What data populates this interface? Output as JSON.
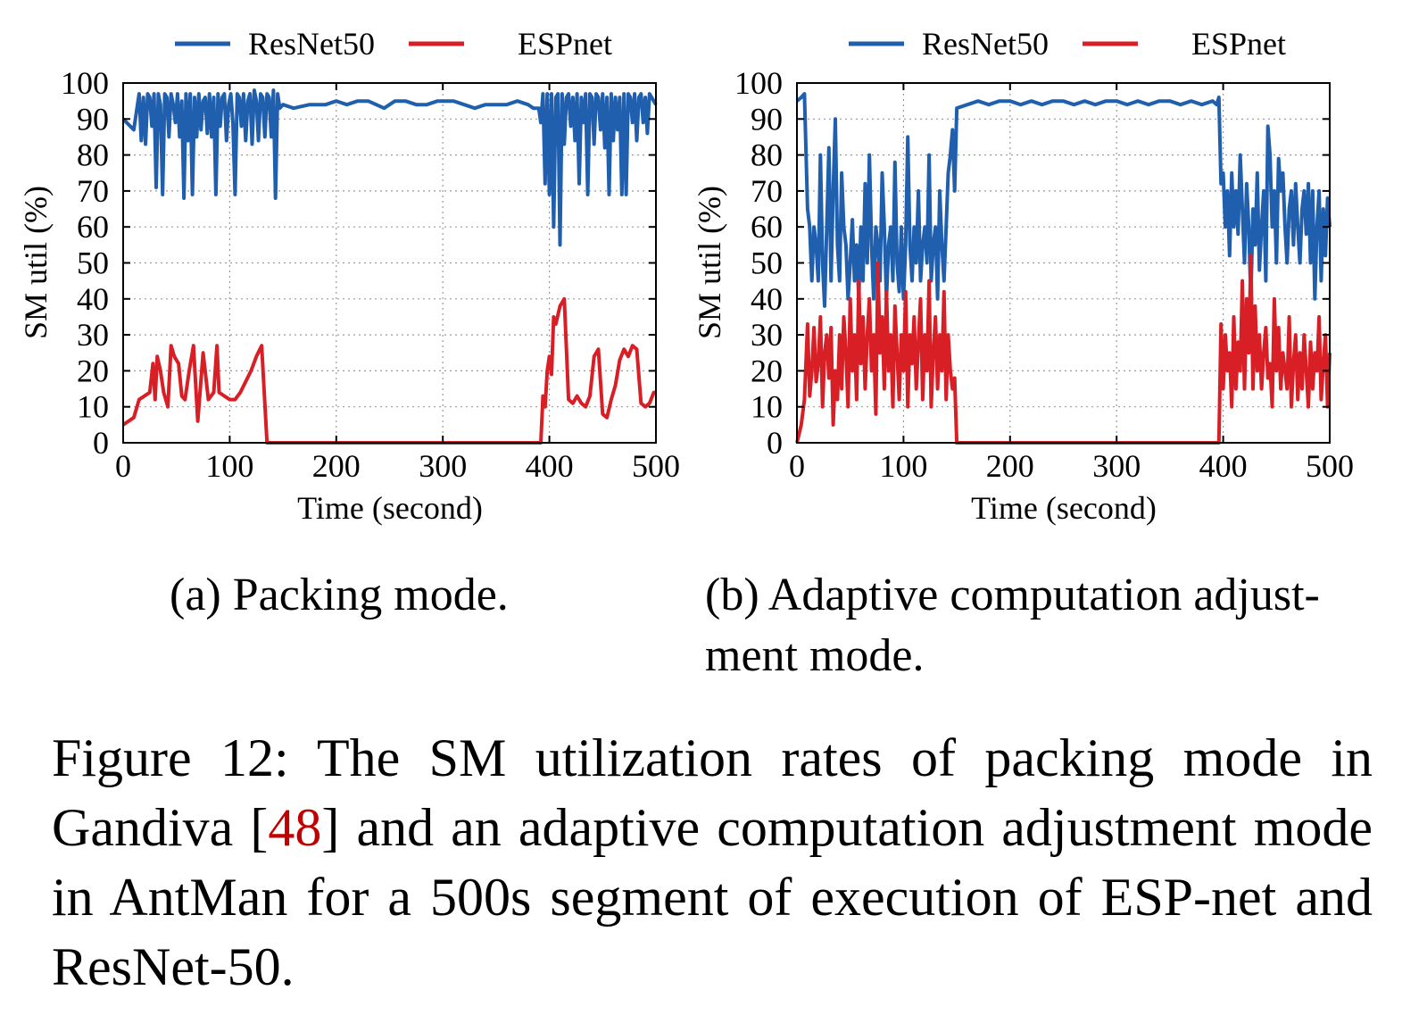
{
  "colors": {
    "resnet": "#1f5fad",
    "espnet": "#d81f26",
    "grid": "#9a9a9a"
  },
  "legend": {
    "series1": "ResNet50",
    "series2": "ESPnet"
  },
  "chart_data": [
    {
      "id": "a",
      "type": "line",
      "title": "",
      "xlabel": "Time (second)",
      "ylabel": "SM util (%)",
      "xlim": [
        0,
        500
      ],
      "ylim": [
        0,
        100
      ],
      "xticks": [
        0,
        100,
        200,
        300,
        400,
        500
      ],
      "yticks": [
        0,
        10,
        20,
        30,
        40,
        50,
        60,
        70,
        80,
        90,
        100
      ],
      "grid": true,
      "legend": "top",
      "series": [
        {
          "name": "ResNet50",
          "x": [
            0,
            10,
            15,
            17,
            19,
            21,
            23,
            25,
            27,
            29,
            31,
            33,
            35,
            37,
            39,
            41,
            43,
            45,
            47,
            49,
            51,
            53,
            55,
            57,
            59,
            61,
            63,
            65,
            67,
            69,
            71,
            73,
            75,
            77,
            79,
            81,
            83,
            85,
            87,
            89,
            91,
            93,
            95,
            97,
            99,
            101,
            103,
            105,
            107,
            109,
            111,
            113,
            115,
            117,
            119,
            121,
            123,
            125,
            127,
            129,
            131,
            133,
            135,
            137,
            139,
            141,
            143,
            145,
            147,
            150,
            160,
            175,
            190,
            200,
            210,
            220,
            230,
            245,
            255,
            265,
            275,
            285,
            295,
            310,
            320,
            330,
            340,
            350,
            360,
            370,
            380,
            385,
            390,
            392,
            394,
            396,
            398,
            400,
            402,
            404,
            406,
            408,
            410,
            412,
            414,
            416,
            418,
            420,
            422,
            424,
            426,
            428,
            430,
            432,
            434,
            436,
            438,
            440,
            442,
            444,
            446,
            448,
            450,
            452,
            454,
            456,
            458,
            460,
            462,
            464,
            466,
            468,
            470,
            472,
            474,
            476,
            478,
            480,
            482,
            484,
            486,
            488,
            490,
            492,
            494,
            496,
            498,
            500
          ],
          "y": [
            90,
            87,
            97,
            84,
            96,
            83,
            97,
            96,
            88,
            97,
            71,
            97,
            94,
            69,
            97,
            96,
            85,
            97,
            94,
            89,
            97,
            85,
            95,
            68,
            97,
            84,
            97,
            69,
            96,
            85,
            97,
            87,
            95,
            96,
            86,
            97,
            85,
            96,
            69,
            97,
            88,
            96,
            97,
            84,
            94,
            97,
            89,
            69,
            97,
            96,
            88,
            97,
            84,
            95,
            97,
            83,
            98,
            95,
            84,
            97,
            96,
            85,
            97,
            96,
            85,
            98,
            68,
            97,
            93,
            94,
            93,
            94,
            94,
            95,
            94,
            95,
            95,
            93,
            95,
            95,
            94,
            94,
            95,
            95,
            94,
            93,
            94,
            94,
            94,
            95,
            94,
            93,
            93,
            89,
            97,
            72,
            97,
            69,
            97,
            60,
            96,
            97,
            55,
            97,
            83,
            96,
            97,
            88,
            96,
            84,
            97,
            72,
            96,
            89,
            97,
            69,
            97,
            96,
            83,
            97,
            96,
            87,
            97,
            82,
            96,
            69,
            97,
            84,
            96,
            87,
            96,
            69,
            97,
            69,
            97,
            96,
            89,
            97,
            84,
            96,
            97,
            89,
            96,
            86,
            97,
            96,
            95,
            94
          ]
        },
        {
          "name": "ESPnet",
          "x": [
            0,
            10,
            15,
            20,
            25,
            28,
            30,
            32,
            35,
            38,
            42,
            45,
            48,
            52,
            55,
            58,
            62,
            66,
            70,
            75,
            80,
            85,
            88,
            90,
            95,
            100,
            105,
            110,
            115,
            120,
            125,
            130,
            135,
            140,
            145,
            148,
            150,
            200,
            250,
            300,
            350,
            392,
            394,
            396,
            398,
            400,
            402,
            404,
            406,
            410,
            414,
            418,
            422,
            426,
            430,
            434,
            438,
            442,
            446,
            450,
            454,
            458,
            462,
            466,
            470,
            474,
            478,
            482,
            486,
            490,
            494,
            498,
            500
          ],
          "y": [
            5,
            7,
            12,
            13,
            14,
            22,
            12,
            24,
            20,
            14,
            10,
            27,
            24,
            22,
            13,
            12,
            20,
            27,
            6,
            25,
            12,
            14,
            27,
            14,
            13,
            12,
            12,
            14,
            17,
            20,
            24,
            27,
            0,
            0,
            0,
            0,
            0,
            0,
            0,
            0,
            0,
            0,
            13,
            10,
            20,
            24,
            19,
            35,
            33,
            38,
            40,
            12,
            11,
            13,
            11,
            10,
            13,
            24,
            26,
            8,
            7,
            12,
            16,
            23,
            26,
            24,
            27,
            26,
            11,
            10,
            11,
            14,
            14
          ]
        }
      ]
    },
    {
      "id": "b",
      "type": "line",
      "title": "",
      "xlabel": "Time (second)",
      "ylabel": "SM util (%)",
      "xlim": [
        0,
        500
      ],
      "ylim": [
        0,
        100
      ],
      "xticks": [
        0,
        100,
        200,
        300,
        400,
        500
      ],
      "yticks": [
        0,
        10,
        20,
        30,
        40,
        50,
        60,
        70,
        80,
        90,
        100
      ],
      "grid": true,
      "legend": "top",
      "series": [
        {
          "name": "ResNet50",
          "x": [
            0,
            4,
            7,
            10,
            12,
            14,
            16,
            18,
            20,
            22,
            24,
            26,
            28,
            30,
            32,
            34,
            36,
            38,
            40,
            42,
            44,
            46,
            48,
            50,
            52,
            54,
            56,
            58,
            60,
            62,
            64,
            66,
            68,
            70,
            72,
            74,
            76,
            78,
            80,
            82,
            84,
            86,
            88,
            90,
            92,
            94,
            96,
            98,
            100,
            102,
            104,
            106,
            108,
            110,
            112,
            114,
            116,
            118,
            120,
            122,
            124,
            126,
            128,
            130,
            132,
            134,
            136,
            138,
            140,
            142,
            144,
            146,
            148,
            150,
            160,
            170,
            180,
            190,
            200,
            210,
            220,
            230,
            240,
            250,
            260,
            270,
            280,
            290,
            300,
            310,
            320,
            330,
            340,
            350,
            360,
            370,
            380,
            390,
            394,
            396,
            398,
            400,
            402,
            404,
            406,
            408,
            410,
            412,
            414,
            416,
            418,
            420,
            422,
            424,
            426,
            428,
            430,
            432,
            434,
            436,
            438,
            440,
            442,
            444,
            446,
            448,
            450,
            452,
            454,
            456,
            458,
            460,
            462,
            464,
            466,
            468,
            470,
            472,
            474,
            476,
            478,
            480,
            482,
            484,
            486,
            488,
            490,
            492,
            494,
            496,
            498,
            500
          ],
          "y": [
            95,
            96,
            97,
            65,
            60,
            45,
            60,
            55,
            45,
            80,
            50,
            38,
            60,
            82,
            45,
            70,
            90,
            55,
            45,
            75,
            60,
            55,
            40,
            50,
            62,
            45,
            55,
            40,
            60,
            45,
            72,
            50,
            80,
            55,
            40,
            60,
            55,
            45,
            75,
            60,
            40,
            55,
            60,
            45,
            78,
            50,
            42,
            60,
            40,
            55,
            85,
            55,
            45,
            60,
            50,
            70,
            45,
            55,
            60,
            50,
            80,
            45,
            55,
            60,
            40,
            70,
            55,
            45,
            60,
            75,
            80,
            87,
            70,
            93,
            94,
            95,
            94,
            95,
            95,
            94,
            95,
            94,
            95,
            95,
            94,
            95,
            94,
            95,
            95,
            94,
            95,
            94,
            95,
            95,
            94,
            95,
            94,
            95,
            94,
            96,
            72,
            75,
            60,
            70,
            52,
            75,
            60,
            70,
            58,
            80,
            65,
            50,
            72,
            60,
            40,
            65,
            55,
            75,
            48,
            60,
            70,
            45,
            88,
            80,
            60,
            70,
            50,
            79,
            70,
            75,
            60,
            50,
            65,
            70,
            55,
            72,
            60,
            50,
            65,
            70,
            58,
            72,
            50,
            70,
            40,
            60,
            70,
            45,
            65,
            52,
            68,
            60
          ]
        },
        {
          "name": "ESPnet",
          "x": [
            0,
            4,
            7,
            10,
            12,
            14,
            16,
            18,
            20,
            22,
            24,
            26,
            28,
            30,
            32,
            34,
            36,
            38,
            40,
            42,
            44,
            46,
            48,
            50,
            52,
            54,
            56,
            58,
            60,
            62,
            64,
            66,
            68,
            70,
            72,
            74,
            76,
            78,
            80,
            82,
            84,
            86,
            88,
            90,
            92,
            94,
            96,
            98,
            100,
            102,
            104,
            106,
            108,
            110,
            112,
            114,
            116,
            118,
            120,
            122,
            124,
            126,
            128,
            130,
            132,
            134,
            136,
            138,
            140,
            142,
            144,
            146,
            148,
            150,
            200,
            250,
            300,
            350,
            396,
            398,
            400,
            402,
            404,
            406,
            408,
            410,
            412,
            414,
            416,
            418,
            420,
            422,
            424,
            426,
            428,
            430,
            432,
            434,
            436,
            438,
            440,
            442,
            444,
            446,
            448,
            450,
            452,
            454,
            456,
            458,
            460,
            462,
            464,
            466,
            468,
            470,
            472,
            474,
            476,
            478,
            480,
            482,
            484,
            486,
            488,
            490,
            492,
            494,
            496,
            498,
            500
          ],
          "y": [
            0,
            5,
            12,
            33,
            13,
            20,
            32,
            17,
            22,
            35,
            10,
            25,
            30,
            18,
            32,
            5,
            20,
            12,
            30,
            15,
            35,
            25,
            10,
            40,
            20,
            30,
            12,
            45,
            22,
            35,
            15,
            30,
            40,
            20,
            30,
            8,
            50,
            25,
            35,
            15,
            42,
            20,
            30,
            10,
            38,
            25,
            12,
            30,
            20,
            42,
            10,
            30,
            22,
            35,
            15,
            28,
            40,
            12,
            30,
            20,
            45,
            10,
            25,
            35,
            15,
            30,
            20,
            42,
            12,
            30,
            20,
            15,
            18,
            0,
            0,
            0,
            0,
            0,
            0,
            33,
            15,
            30,
            20,
            25,
            10,
            35,
            15,
            28,
            20,
            45,
            15,
            40,
            25,
            52,
            15,
            38,
            20,
            30,
            15,
            25,
            32,
            18,
            22,
            10,
            40,
            20,
            32,
            15,
            25,
            20,
            15,
            35,
            10,
            22,
            30,
            12,
            25,
            15,
            30,
            20,
            10,
            28,
            15,
            25,
            20,
            35,
            12,
            22,
            30,
            10,
            25
          ]
        }
      ]
    }
  ],
  "subcaptions": {
    "a": "(a) Packing mode.",
    "b": "(b) Adaptive computation adjust-ment mode."
  },
  "figure_caption": {
    "pre": "Figure 12: The SM utilization rates of packing mode in Gandiva [",
    "cite": "48",
    "post": "] and an adaptive computation adjustment mode in AntMan for a 500s segment of execution of ESP-net and ResNet-50."
  }
}
